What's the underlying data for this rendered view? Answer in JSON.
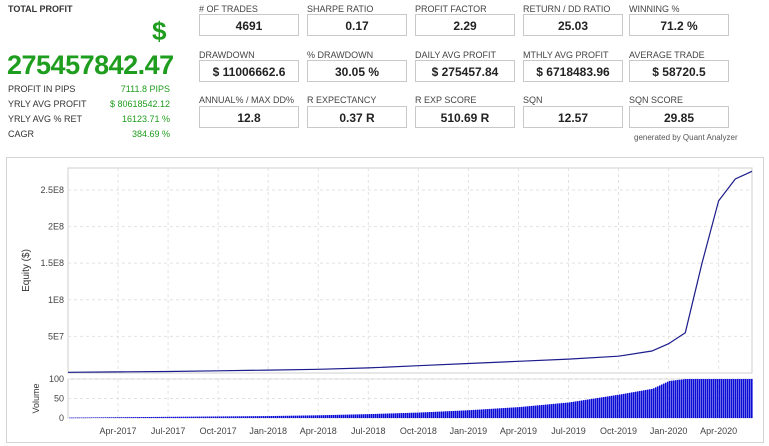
{
  "summary": {
    "total_profit_label": "TOTAL PROFIT",
    "currency_symbol": "$",
    "total_profit_value": "275457842.47",
    "metrics": [
      {
        "label": "PROFIT IN PIPS",
        "value": "7111.8 PIPS"
      },
      {
        "label": "YRLY AVG PROFIT",
        "value": "$ 80618542.12"
      },
      {
        "label": "YRLY AVG % RET",
        "value": "16123.71 %"
      },
      {
        "label": "CAGR",
        "value": "384.69 %"
      }
    ]
  },
  "stats": [
    {
      "label": "# OF TRADES",
      "value": "4691"
    },
    {
      "label": "SHARPE RATIO",
      "value": "0.17"
    },
    {
      "label": "PROFIT FACTOR",
      "value": "2.29"
    },
    {
      "label": "RETURN / DD RATIO",
      "value": "25.03"
    },
    {
      "label": "WINNING %",
      "value": "71.2 %"
    },
    {
      "label": "DRAWDOWN",
      "value": "$ 11006662.6"
    },
    {
      "label": "% DRAWDOWN",
      "value": "30.05 %"
    },
    {
      "label": "DAILY AVG PROFIT",
      "value": "$ 275457.84"
    },
    {
      "label": "MTHLY AVG PROFIT",
      "value": "$ 6718483.96"
    },
    {
      "label": "AVERAGE TRADE",
      "value": "$ 58720.5"
    },
    {
      "label": "ANNUAL% / MAX DD%",
      "value": "12.8"
    },
    {
      "label": "R EXPECTANCY",
      "value": "0.37 R"
    },
    {
      "label": "R EXP SCORE",
      "value": "510.69 R"
    },
    {
      "label": "SQN",
      "value": "12.57"
    },
    {
      "label": "SQN SCORE",
      "value": "29.85"
    }
  ],
  "generated_by": "generated by Quant Analyzer",
  "colors": {
    "profit_green": "#1e9d1e",
    "equity_line": "#1c1c8c",
    "volume_bar": "#0b0bd6",
    "grid": "#e2e2e2"
  },
  "chart_data": [
    {
      "type": "line",
      "ylabel": "Equity ($)",
      "y_tick_labels": [
        "5E7",
        "1E8",
        "1.5E8",
        "2E8",
        "2.5E8"
      ],
      "y_tick_values": [
        50000000,
        100000000,
        150000000,
        200000000,
        250000000
      ],
      "ylim": [
        0,
        280000000
      ],
      "grid": true,
      "series": [
        {
          "x": [
            "2017-01",
            "2017-04",
            "2017-07",
            "2017-10",
            "2018-01",
            "2018-04",
            "2018-07",
            "2018-10",
            "2019-01",
            "2019-04",
            "2019-07",
            "2019-10",
            "2019-12",
            "2020-01",
            "2020-02",
            "2020-03",
            "2020-04",
            "2020-05",
            "2020-06"
          ],
          "values": [
            1000000,
            1500000,
            2000000,
            3000000,
            4000000,
            5000000,
            7000000,
            10000000,
            13000000,
            16000000,
            19000000,
            23000000,
            30000000,
            40000000,
            55000000,
            150000000,
            235000000,
            265000000,
            275457842
          ]
        }
      ]
    },
    {
      "type": "bar",
      "ylabel": "Volume",
      "y_tick_labels": [
        "0",
        "50",
        "100"
      ],
      "y_tick_values": [
        0,
        50,
        100
      ],
      "ylim": [
        0,
        100
      ],
      "grid": true,
      "x_tick_labels": [
        "Apr-2017",
        "Jul-2017",
        "Oct-2017",
        "Jan-2018",
        "Apr-2018",
        "Jul-2018",
        "Oct-2018",
        "Jan-2019",
        "Apr-2019",
        "Jul-2019",
        "Oct-2019",
        "Jan-2020",
        "Apr-2020"
      ],
      "series": [
        {
          "x": [
            "2017-01",
            "2017-04",
            "2017-07",
            "2017-10",
            "2018-01",
            "2018-04",
            "2018-07",
            "2018-10",
            "2019-01",
            "2019-04",
            "2019-07",
            "2019-10",
            "2019-12",
            "2020-01",
            "2020-02",
            "2020-03",
            "2020-04",
            "2020-05",
            "2020-06"
          ],
          "values": [
            1,
            2,
            3,
            4,
            5,
            7,
            10,
            14,
            20,
            28,
            40,
            60,
            75,
            95,
            100,
            100,
            100,
            100,
            100
          ]
        }
      ]
    }
  ]
}
